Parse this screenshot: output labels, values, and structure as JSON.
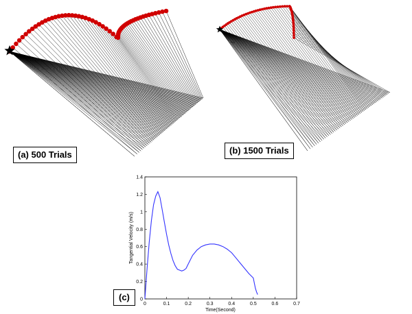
{
  "labels": {
    "a": "(a) 500 Trials",
    "b": "(b) 1500 Trials",
    "c": "(c)"
  },
  "colors": {
    "trajectory": "#d00000",
    "arm_lines": "#000000",
    "velocity_curve": "#3333ff",
    "start_marker": "#000000"
  },
  "icons": {
    "start_marker": "star-icon"
  },
  "chart_data": {
    "type": "line",
    "title": "",
    "xlabel": "Time(Second)",
    "ylabel": "Tangential Velocity (m/s)",
    "xlim": [
      0,
      0.7
    ],
    "ylim": [
      0,
      1.4
    ],
    "xticks": [
      "0",
      "0.1",
      "0.2",
      "0.3",
      "0.4",
      "0.5",
      "0.6",
      "0.7"
    ],
    "yticks": [
      "0",
      "0.2",
      "0.4",
      "0.6",
      "0.8",
      "1",
      "1.2",
      "1.4"
    ],
    "grid": false,
    "legend": "none",
    "series": [
      {
        "x": [
          0,
          0.01,
          0.02,
          0.03,
          0.04,
          0.05,
          0.06,
          0.07,
          0.08,
          0.09,
          0.1,
          0.11,
          0.12,
          0.13,
          0.14,
          0.15,
          0.16,
          0.17,
          0.18,
          0.19,
          0.2,
          0.21,
          0.22,
          0.24,
          0.26,
          0.28,
          0.3,
          0.32,
          0.34,
          0.36,
          0.38,
          0.4,
          0.42,
          0.44,
          0.46,
          0.48,
          0.5,
          0.505,
          0.51,
          0.515,
          0.52
        ],
        "y": [
          0,
          0.35,
          0.65,
          0.9,
          1.08,
          1.18,
          1.23,
          1.16,
          1.02,
          0.88,
          0.74,
          0.62,
          0.52,
          0.44,
          0.38,
          0.34,
          0.33,
          0.32,
          0.33,
          0.35,
          0.4,
          0.45,
          0.5,
          0.56,
          0.6,
          0.62,
          0.63,
          0.63,
          0.62,
          0.6,
          0.57,
          0.53,
          0.47,
          0.41,
          0.35,
          0.29,
          0.24,
          0.18,
          0.12,
          0.08,
          0.05
        ]
      }
    ]
  }
}
